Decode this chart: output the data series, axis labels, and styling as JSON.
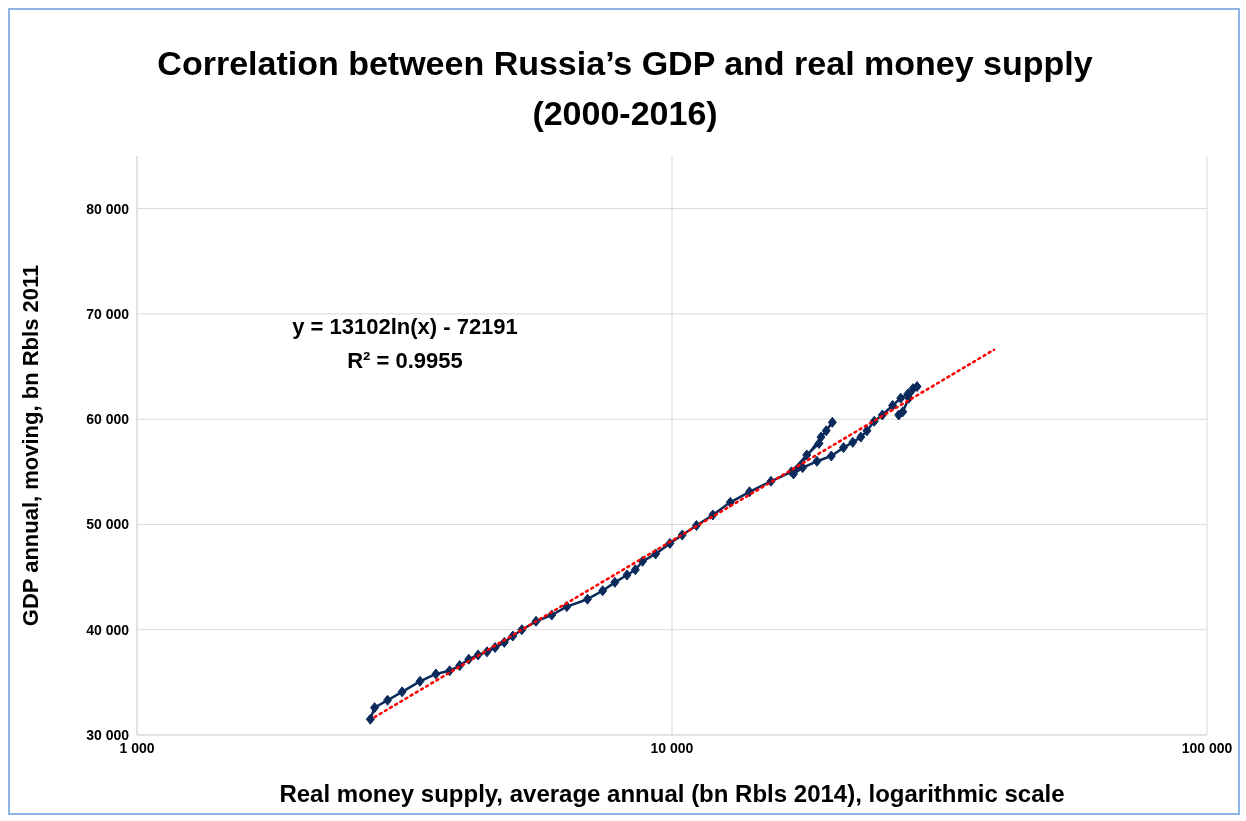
{
  "chart_data": {
    "type": "line",
    "title": "Correlation between Russia’s GDP and real money supply (2000-2016)",
    "xlabel": "Real money supply, average annual (bn Rbls 2014), logarithmic scale",
    "ylabel": "GDP annual, moving, bn Rbls 2011",
    "annotations": [
      "y = 13102ln(x) - 72191",
      "R² = 0.9955"
    ],
    "log": "x",
    "grid": true,
    "xlim": [
      1000,
      100000
    ],
    "xticks": [
      {
        "value": 1000,
        "label": "1 000"
      },
      {
        "value": 10000,
        "label": "10 000"
      },
      {
        "value": 100000,
        "label": "100 000"
      }
    ],
    "ylim": [
      30000,
      85000
    ],
    "yticks": [
      {
        "value": 30000,
        "label": "30 000"
      },
      {
        "value": 40000,
        "label": "40 000"
      },
      {
        "value": 50000,
        "label": "50 000"
      },
      {
        "value": 60000,
        "label": "60 000"
      },
      {
        "value": 70000,
        "label": "70 000"
      },
      {
        "value": 80000,
        "label": "80 000"
      }
    ],
    "series": [
      {
        "color": "#0b2a5c",
        "marker": "diamond",
        "line_style": "solid",
        "x": [
          2730,
          2780,
          2940,
          3130,
          3380,
          3620,
          3840,
          4010,
          4170,
          4340,
          4510,
          4670,
          4860,
          5040,
          5240,
          5570,
          5960,
          6360,
          6950,
          7420,
          7820,
          8240,
          8540,
          8810,
          9320,
          9910,
          10450,
          11110,
          11920,
          12850,
          13960,
          15310,
          16720,
          17860,
          18830,
          18990,
          19420,
          19940,
          16870,
          17550,
          18660,
          19850,
          20920,
          21770,
          22540,
          23140,
          23880,
          24730,
          25840,
          26760,
          27600,
          28210,
          28710,
          27720,
          27000,
          26530
        ],
        "values": [
          31500,
          32600,
          33300,
          34100,
          35100,
          35800,
          36100,
          36600,
          37200,
          37600,
          37900,
          38300,
          38800,
          39400,
          40000,
          40800,
          41400,
          42200,
          42900,
          43700,
          44500,
          45200,
          45700,
          46500,
          47200,
          48200,
          49000,
          49900,
          50900,
          52100,
          53100,
          54100,
          55000,
          56600,
          57700,
          58300,
          58900,
          59700,
          54800,
          55400,
          56000,
          56500,
          57300,
          57800,
          58300,
          58900,
          59800,
          60400,
          61300,
          62000,
          62400,
          62900,
          63100,
          62000,
          60700,
          60400
        ]
      },
      {
        "type": "line",
        "color": "#ff0000",
        "marker": "none",
        "line_style": "dotted",
        "x": [
          2780,
          40000
        ],
        "values": [
          31700,
          66600
        ]
      }
    ]
  }
}
